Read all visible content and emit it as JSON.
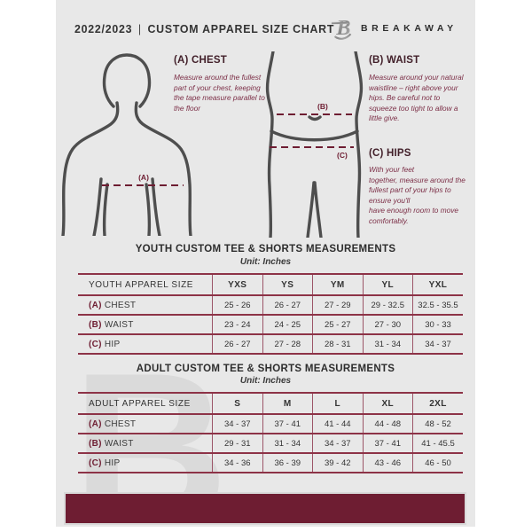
{
  "header": {
    "season": "2022/2023",
    "separator": "|",
    "title": "CUSTOM APPAREL SIZE CHART",
    "brand": "BREAKAWAY",
    "logo_letter": "B"
  },
  "diagram_labels": {
    "chest": "(A)",
    "waist": "(B)",
    "hips": "(C)"
  },
  "measurements": [
    {
      "key": "(A)",
      "name": "CHEST",
      "desc": "Measure around the fullest part of your chest, keeping the tape measure parallel to the floor"
    },
    {
      "key": "(B)",
      "name": "WAIST",
      "desc": "Measure around your natural waistline – right above your hips. Be careful not to squeeze too tight to allow a little give."
    },
    {
      "key": "(C)",
      "name": "HIPS",
      "desc": "With your feet\ntogether, measure around the fullest part of your hips to ensure you'll\nhave enough room to move comfortably."
    }
  ],
  "youth_table": {
    "title": "YOUTH CUSTOM TEE & SHORTS MEASUREMENTS",
    "unit": "Unit: Inches",
    "header": [
      "YOUTH APPAREL SIZE",
      "YXS",
      "YS",
      "YM",
      "YL",
      "YXL"
    ],
    "rows": [
      {
        "key": "(A)",
        "label": "CHEST",
        "values": [
          "25 - 26",
          "26 - 27",
          "27 - 29",
          "29 - 32.5",
          "32.5 - 35.5"
        ]
      },
      {
        "key": "(B)",
        "label": "WAIST",
        "values": [
          "23 - 24",
          "24 - 25",
          "25 - 27",
          "27 - 30",
          "30 - 33"
        ]
      },
      {
        "key": "(C)",
        "label": "HIP",
        "values": [
          "26 - 27",
          "27 - 28",
          "28 - 31",
          "31 - 34",
          "34 - 37"
        ]
      }
    ]
  },
  "adult_table": {
    "title": "ADULT CUSTOM TEE & SHORTS MEASUREMENTS",
    "unit": "Unit: Inches",
    "header": [
      "ADULT APPAREL SIZE",
      "S",
      "M",
      "L",
      "XL",
      "2XL"
    ],
    "rows": [
      {
        "key": "(A)",
        "label": "CHEST",
        "values": [
          "34 - 37",
          "37 - 41",
          "41 - 44",
          "44 - 48",
          "48 - 52"
        ]
      },
      {
        "key": "(B)",
        "label": "WAIST",
        "values": [
          "29 - 31",
          "31 - 34",
          "34 - 37",
          "37 - 41",
          "41 - 45.5"
        ]
      },
      {
        "key": "(C)",
        "label": "HIP",
        "values": [
          "34 - 36",
          "36 - 39",
          "39 - 42",
          "43 - 46",
          "46 - 50"
        ]
      }
    ]
  },
  "colors": {
    "maroon": "#6e1d32",
    "table_border": "#8d3347",
    "description_text": "#7c2f47",
    "page_background": "#e8e8e8",
    "dark_text": "#333333"
  }
}
